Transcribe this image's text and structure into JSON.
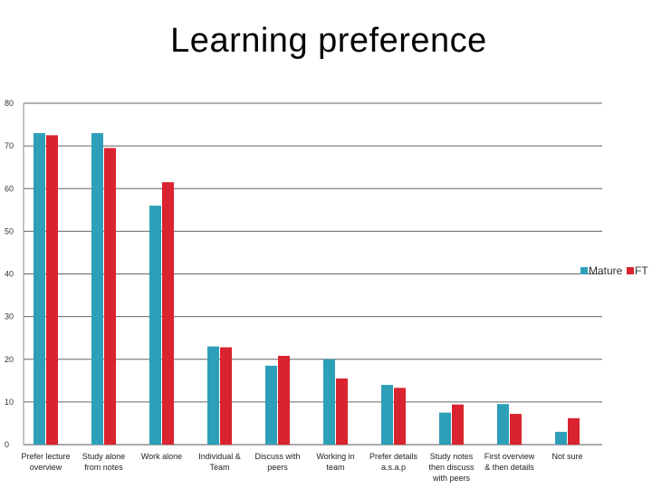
{
  "chart_data": {
    "type": "bar",
    "title": "Learning preference",
    "categories": [
      [
        "Prefer lecture",
        "overview"
      ],
      [
        "Study alone",
        "from notes"
      ],
      [
        "Work alone"
      ],
      [
        "Individual &",
        "Team"
      ],
      [
        "Discuss  with",
        "peers"
      ],
      [
        "Working in",
        "team"
      ],
      [
        "Prefer details",
        "a.s.a.p"
      ],
      [
        "Study notes",
        "then discuss",
        "with peers"
      ],
      [
        "First overview",
        "& then details"
      ],
      [
        "Not sure"
      ]
    ],
    "series": [
      {
        "name": "Mature",
        "color": "#2e9fb8",
        "values": [
          73,
          73,
          56,
          23,
          18.5,
          20,
          14,
          7.5,
          9.5,
          3
        ]
      },
      {
        "name": "FT",
        "color": "#d9232e",
        "values": [
          72.5,
          69.5,
          61.5,
          22.8,
          20.8,
          15.5,
          13.3,
          9.4,
          7.2,
          6.2
        ]
      }
    ],
    "ylim": [
      0,
      80
    ],
    "yticks": [
      0,
      10,
      20,
      30,
      40,
      50,
      60,
      70,
      80
    ],
    "grid": true,
    "legend_position": "right"
  }
}
